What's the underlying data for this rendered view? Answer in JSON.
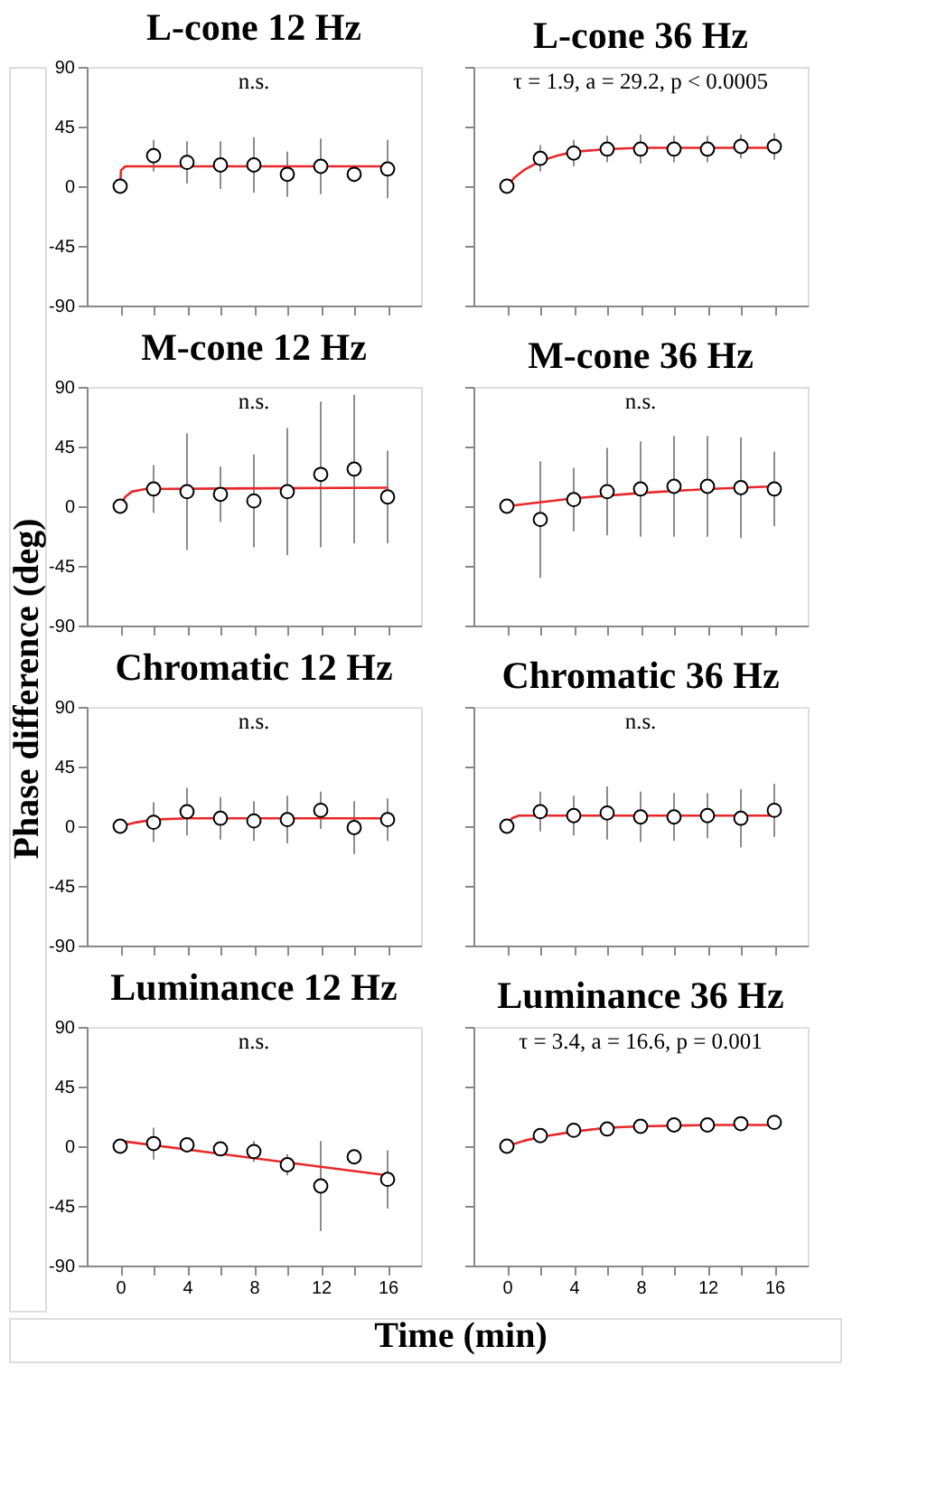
{
  "chart_data": [
    {
      "type": "scatter",
      "title": "L-cone 12 Hz",
      "ylabel": "Phase difference (deg)",
      "annotations": [
        "n.s."
      ],
      "xlim": [
        -2,
        18
      ],
      "xticks": [
        0,
        {
          "value": 2,
          "label": null
        },
        4,
        {
          "value": 6,
          "label": null
        },
        8,
        {
          "value": 10,
          "label": null
        },
        12,
        {
          "value": 14,
          "label": null
        },
        16
      ],
      "ylim": [
        -90,
        90
      ],
      "yticks": [
        -90,
        -45,
        0,
        45,
        90
      ],
      "tick_labels": "y",
      "series": [
        {
          "type": "line",
          "color": "#e8282a",
          "line_style": "solid",
          "x": [
            0,
            0.05,
            0.3,
            16
          ],
          "values": [
            0,
            12,
            15,
            15
          ]
        },
        {
          "type": "scatter",
          "color": "#000000",
          "marker": "circle",
          "x": [
            0,
            2,
            4,
            6,
            8,
            10,
            12,
            14,
            16
          ],
          "values": [
            0,
            23,
            18,
            16,
            16,
            9,
            15,
            9,
            13
          ],
          "errors": [
            null,
            12,
            16,
            18,
            21,
            17,
            21,
            6,
            22
          ]
        }
      ]
    },
    {
      "type": "scatter",
      "title": "L-cone 36 Hz",
      "annotations": [
        "τ = 1.9, a = 29.2, p < 0.0005"
      ],
      "xlim": [
        -2,
        18
      ],
      "xticks": [
        0,
        {
          "value": 2,
          "label": null
        },
        4,
        {
          "value": 6,
          "label": null
        },
        8,
        {
          "value": 10,
          "label": null
        },
        12,
        {
          "value": 14,
          "label": null
        },
        16
      ],
      "ylim": [
        -90,
        90
      ],
      "yticks": [
        -90,
        -45,
        0,
        45,
        90
      ],
      "tick_labels": false,
      "series": [
        {
          "type": "line",
          "color": "#e8282a",
          "line_style": "solid",
          "x": [
            0,
            0.5,
            1,
            2,
            3,
            4,
            6,
            8,
            12,
            16
          ],
          "values": [
            0,
            7,
            12,
            19,
            23,
            26,
            28,
            29,
            29,
            29
          ]
        },
        {
          "type": "scatter",
          "color": "#000000",
          "marker": "circle",
          "x": [
            0,
            2,
            4,
            6,
            8,
            10,
            12,
            14,
            16
          ],
          "values": [
            0,
            21,
            25,
            28,
            28,
            28,
            28,
            30,
            30
          ],
          "errors": [
            null,
            10,
            10,
            10,
            11,
            10,
            10,
            9,
            10
          ]
        }
      ]
    },
    {
      "type": "scatter",
      "title": "M-cone 12 Hz",
      "annotations": [
        "n.s."
      ],
      "xlim": [
        -2,
        18
      ],
      "xticks": [
        0,
        {
          "value": 2,
          "label": null
        },
        4,
        {
          "value": 6,
          "label": null
        },
        8,
        {
          "value": 10,
          "label": null
        },
        12,
        {
          "value": 14,
          "label": null
        },
        16
      ],
      "ylim": [
        -90,
        90
      ],
      "yticks": [
        -90,
        -45,
        0,
        45,
        90
      ],
      "tick_labels": "y",
      "series": [
        {
          "type": "line",
          "color": "#e8282a",
          "line_style": "solid",
          "x": [
            0,
            0.3,
            0.7,
            1.5,
            16
          ],
          "values": [
            0,
            7,
            11,
            13,
            14
          ]
        },
        {
          "type": "scatter",
          "color": "#000000",
          "marker": "circle",
          "x": [
            0,
            2,
            4,
            6,
            8,
            10,
            12,
            14,
            16
          ],
          "values": [
            0,
            13,
            11,
            9,
            4,
            11,
            24,
            28,
            7
          ],
          "errors": [
            null,
            18,
            44,
            21,
            35,
            48,
            55,
            56,
            35
          ]
        }
      ]
    },
    {
      "type": "scatter",
      "title": "M-cone 36 Hz",
      "annotations": [
        "n.s."
      ],
      "xlim": [
        -2,
        18
      ],
      "xticks": [
        0,
        {
          "value": 2,
          "label": null
        },
        4,
        {
          "value": 6,
          "label": null
        },
        8,
        {
          "value": 10,
          "label": null
        },
        12,
        {
          "value": 14,
          "label": null
        },
        16
      ],
      "ylim": [
        -90,
        90
      ],
      "yticks": [
        -90,
        -45,
        0,
        45,
        90
      ],
      "tick_labels": false,
      "series": [
        {
          "type": "line",
          "color": "#e8282a",
          "line_style": "solid",
          "x": [
            0,
            4,
            8,
            12,
            16
          ],
          "values": [
            0,
            6,
            10,
            13,
            15
          ]
        },
        {
          "type": "scatter",
          "color": "#000000",
          "marker": "circle",
          "x": [
            0,
            2,
            4,
            6,
            8,
            10,
            12,
            14,
            16
          ],
          "values": [
            0,
            -10,
            5,
            11,
            13,
            15,
            15,
            14,
            13
          ],
          "errors": [
            null,
            44,
            24,
            33,
            36,
            38,
            38,
            38,
            28
          ]
        }
      ]
    },
    {
      "type": "scatter",
      "title": "Chromatic 12 Hz",
      "annotations": [
        "n.s."
      ],
      "xlim": [
        -2,
        18
      ],
      "xticks": [
        0,
        {
          "value": 2,
          "label": null
        },
        4,
        {
          "value": 6,
          "label": null
        },
        8,
        {
          "value": 10,
          "label": null
        },
        12,
        {
          "value": 14,
          "label": null
        },
        16
      ],
      "ylim": [
        -90,
        90
      ],
      "yticks": [
        -90,
        -45,
        0,
        45,
        90
      ],
      "tick_labels": "y",
      "series": [
        {
          "type": "line",
          "color": "#e8282a",
          "line_style": "solid",
          "x": [
            0,
            1,
            2,
            4,
            16
          ],
          "values": [
            0,
            3,
            5,
            6,
            6
          ]
        },
        {
          "type": "scatter",
          "color": "#000000",
          "marker": "circle",
          "x": [
            0,
            2,
            4,
            6,
            8,
            10,
            12,
            14,
            16
          ],
          "values": [
            0,
            3,
            11,
            6,
            4,
            5,
            12,
            -1,
            5
          ],
          "errors": [
            null,
            15,
            18,
            16,
            15,
            18,
            14,
            20,
            16
          ]
        }
      ]
    },
    {
      "type": "scatter",
      "title": "Chromatic 36 Hz",
      "annotations": [
        "n.s."
      ],
      "xlim": [
        -2,
        18
      ],
      "xticks": [
        0,
        {
          "value": 2,
          "label": null
        },
        4,
        {
          "value": 6,
          "label": null
        },
        8,
        {
          "value": 10,
          "label": null
        },
        12,
        {
          "value": 14,
          "label": null
        },
        16
      ],
      "ylim": [
        -90,
        90
      ],
      "yticks": [
        -90,
        -45,
        0,
        45,
        90
      ],
      "tick_labels": false,
      "series": [
        {
          "type": "line",
          "color": "#e8282a",
          "line_style": "solid",
          "x": [
            0,
            0.3,
            0.7,
            16
          ],
          "values": [
            0,
            6,
            8,
            8
          ]
        },
        {
          "type": "scatter",
          "color": "#000000",
          "marker": "circle",
          "x": [
            0,
            2,
            4,
            6,
            8,
            10,
            12,
            14,
            16
          ],
          "values": [
            0,
            11,
            8,
            10,
            7,
            7,
            8,
            6,
            12
          ],
          "errors": [
            null,
            15,
            15,
            20,
            19,
            18,
            17,
            22,
            20
          ]
        }
      ]
    },
    {
      "type": "scatter",
      "title": "Luminance 12 Hz",
      "xlabel": "Time (min)",
      "annotations": [
        "n.s."
      ],
      "xlim": [
        -2,
        18
      ],
      "xticks": [
        0,
        {
          "value": 2,
          "label": null
        },
        4,
        {
          "value": 6,
          "label": null
        },
        8,
        {
          "value": 10,
          "label": null
        },
        12,
        {
          "value": 14,
          "label": null
        },
        16
      ],
      "ylim": [
        -90,
        90
      ],
      "yticks": [
        -90,
        -45,
        0,
        45,
        90
      ],
      "series": [
        {
          "type": "line",
          "color": "#e8282a",
          "line_style": "solid",
          "x": [
            0,
            16
          ],
          "values": [
            4,
            -22
          ]
        },
        {
          "type": "scatter",
          "color": "#000000",
          "marker": "circle",
          "x": [
            0,
            2,
            4,
            6,
            8,
            10,
            12,
            14,
            16
          ],
          "values": [
            0,
            2,
            1,
            -2,
            -4,
            -14,
            -30,
            -8,
            -25
          ],
          "errors": [
            null,
            12,
            null,
            3,
            8,
            8,
            34,
            null,
            22
          ]
        }
      ]
    },
    {
      "type": "scatter",
      "title": "Luminance 36 Hz",
      "annotations": [
        "τ = 3.4, a = 16.6, p = 0.001"
      ],
      "xlim": [
        -2,
        18
      ],
      "xticks": [
        0,
        {
          "value": 2,
          "label": null
        },
        4,
        {
          "value": 6,
          "label": null
        },
        8,
        {
          "value": 10,
          "label": null
        },
        12,
        {
          "value": 14,
          "label": null
        },
        16
      ],
      "ylim": [
        -90,
        90
      ],
      "yticks": [
        -90,
        -45,
        0,
        45,
        90
      ],
      "tick_labels": "x",
      "series": [
        {
          "type": "line",
          "color": "#e8282a",
          "line_style": "solid",
          "x": [
            0,
            1,
            2,
            4,
            6,
            8,
            12,
            16
          ],
          "values": [
            0,
            4,
            7,
            11,
            14,
            15,
            16,
            16
          ]
        },
        {
          "type": "scatter",
          "color": "#000000",
          "marker": "circle",
          "x": [
            0,
            2,
            4,
            6,
            8,
            10,
            12,
            14,
            16
          ],
          "values": [
            0,
            8,
            12,
            13,
            15,
            16,
            16,
            17,
            18
          ],
          "errors": [
            null,
            4,
            4,
            4,
            4,
            4,
            4,
            4,
            4
          ]
        }
      ]
    }
  ]
}
